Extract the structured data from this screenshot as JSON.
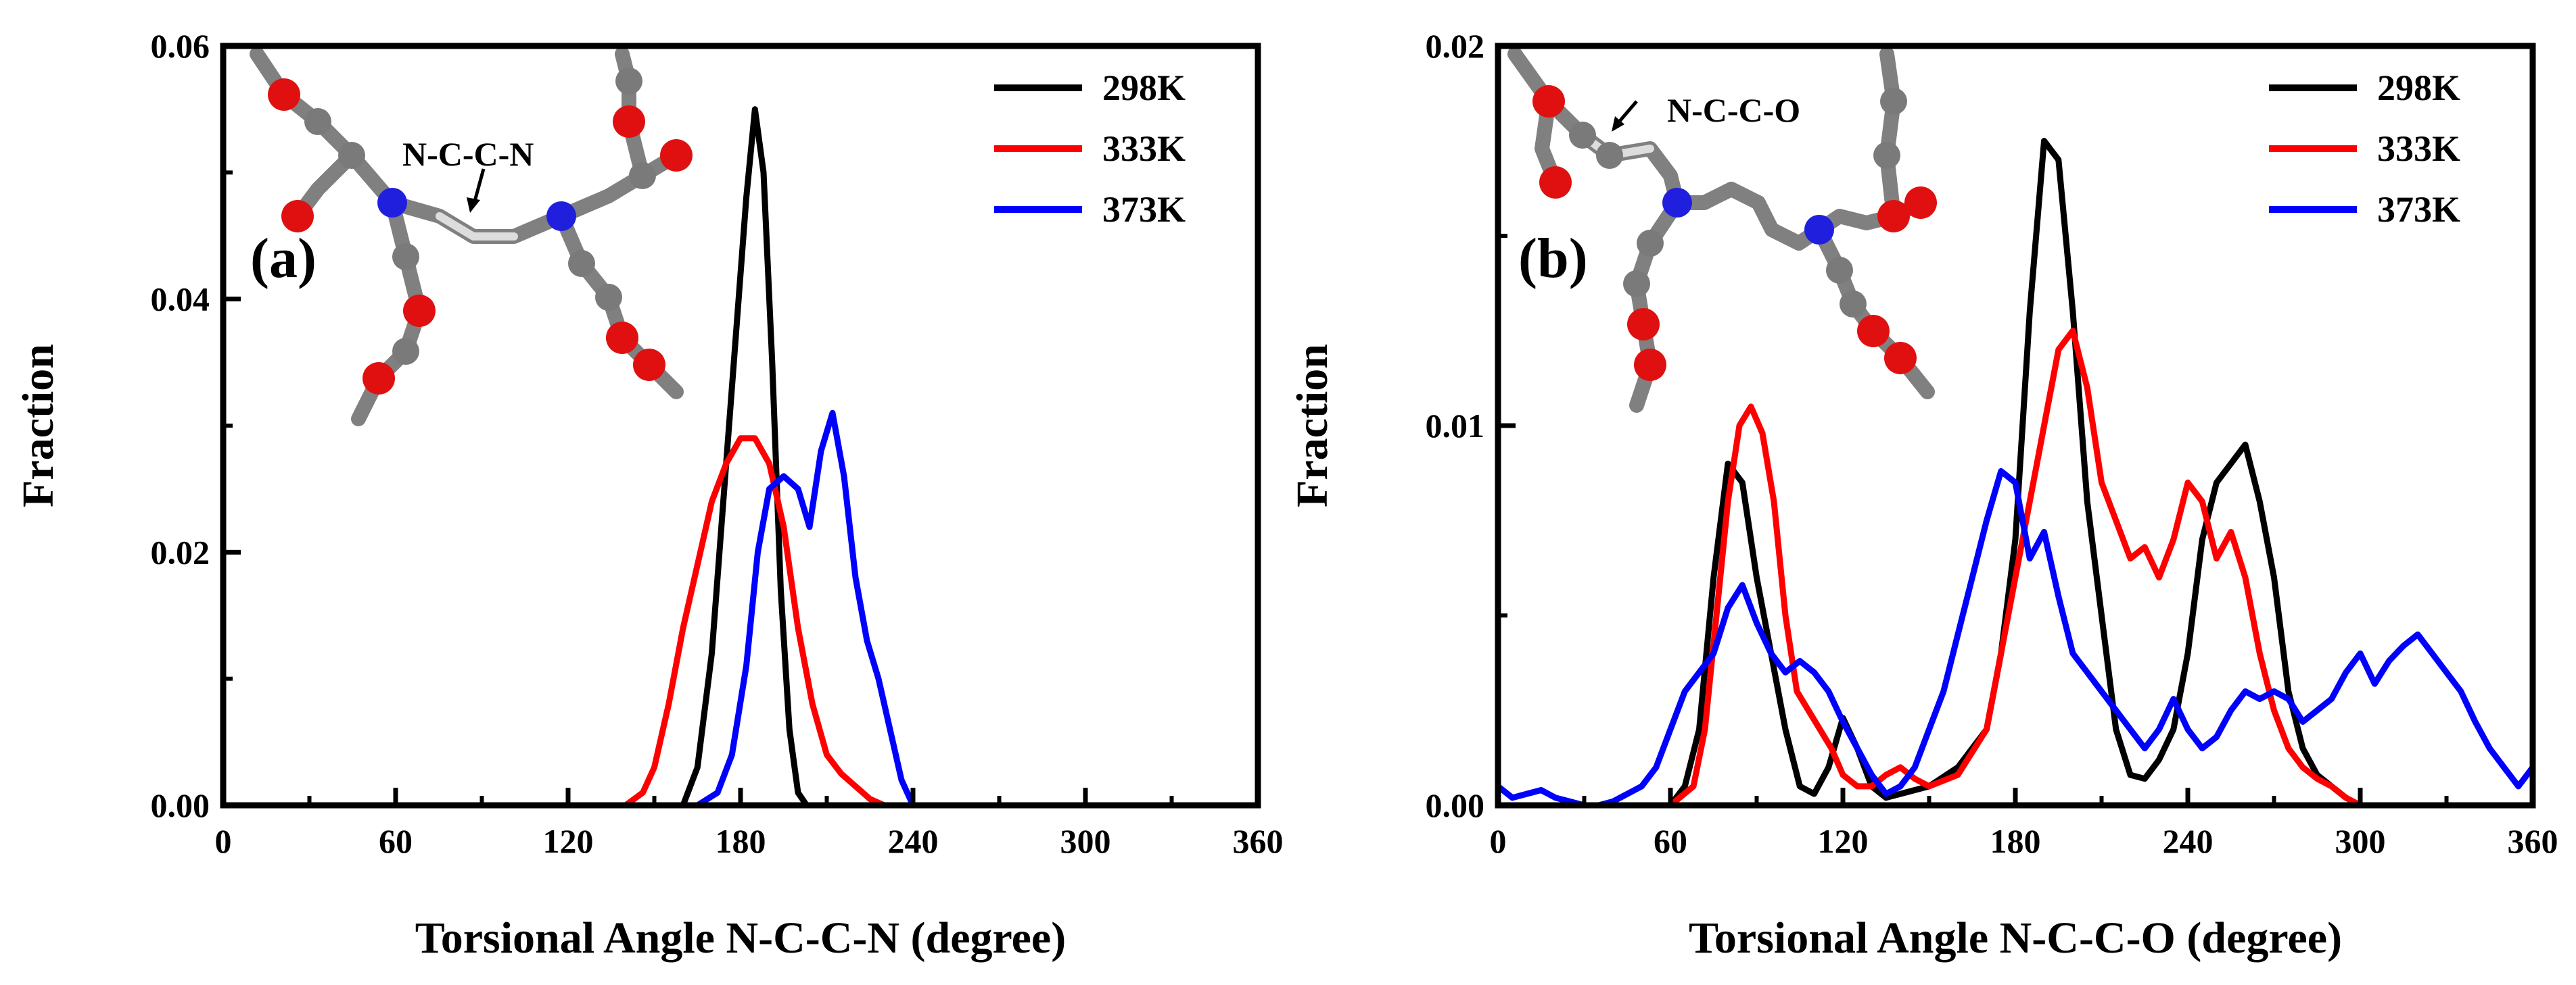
{
  "chart_data": [
    {
      "type": "line",
      "panel_label": "(a)",
      "xlabel": "Torsional Angle N-C-C-N (degree)",
      "ylabel": "Fraction",
      "xlim": [
        0,
        360
      ],
      "ylim": [
        0,
        0.06
      ],
      "xticks": [
        "0",
        "60",
        "120",
        "180",
        "240",
        "300",
        "360"
      ],
      "yticks": [
        "0.00",
        "0.02",
        "0.04",
        "0.06"
      ],
      "legend_position": "top-right",
      "inset_label": "N-C-C-N",
      "series": [
        {
          "name": "298K",
          "color": "#000000",
          "x": [
            0,
            160,
            165,
            170,
            174,
            178,
            182,
            185,
            188,
            191,
            194,
            197,
            200,
            203,
            360
          ],
          "values": [
            0,
            0,
            0.003,
            0.012,
            0.024,
            0.036,
            0.048,
            0.055,
            0.05,
            0.035,
            0.017,
            0.006,
            0.001,
            0,
            0
          ]
        },
        {
          "name": "333K",
          "color": "#ff0000",
          "x": [
            0,
            140,
            146,
            150,
            155,
            160,
            165,
            170,
            175,
            180,
            185,
            190,
            195,
            200,
            205,
            210,
            215,
            220,
            225,
            230,
            360
          ],
          "values": [
            0,
            0,
            0.001,
            0.003,
            0.008,
            0.014,
            0.019,
            0.024,
            0.027,
            0.029,
            0.029,
            0.027,
            0.022,
            0.014,
            0.008,
            0.004,
            0.0025,
            0.0015,
            0.0005,
            0,
            0
          ]
        },
        {
          "name": "373K",
          "color": "#0000ff",
          "x": [
            0,
            165,
            172,
            177,
            182,
            186,
            190,
            195,
            200,
            204,
            208,
            212,
            216,
            220,
            224,
            228,
            232,
            236,
            240,
            360
          ],
          "values": [
            0,
            0,
            0.001,
            0.004,
            0.011,
            0.02,
            0.025,
            0.026,
            0.025,
            0.022,
            0.028,
            0.031,
            0.026,
            0.018,
            0.013,
            0.01,
            0.006,
            0.002,
            0,
            0
          ]
        }
      ]
    },
    {
      "type": "line",
      "panel_label": "(b)",
      "xlabel": "Torsional Angle N-C-C-O (degree)",
      "ylabel": "Fraction",
      "xlim": [
        0,
        360
      ],
      "ylim": [
        0,
        0.02
      ],
      "xticks": [
        "0",
        "60",
        "120",
        "180",
        "240",
        "300",
        "360"
      ],
      "yticks": [
        "0.00",
        "0.01",
        "0.02"
      ],
      "legend_position": "top-right",
      "inset_label": "N-C-C-O",
      "series": [
        {
          "name": "298K",
          "color": "#000000",
          "x": [
            0,
            60,
            65,
            70,
            75,
            80,
            85,
            90,
            95,
            100,
            105,
            110,
            115,
            120,
            125,
            130,
            135,
            140,
            150,
            160,
            170,
            175,
            180,
            185,
            190,
            195,
            200,
            205,
            210,
            215,
            220,
            225,
            230,
            235,
            240,
            245,
            250,
            255,
            260,
            265,
            270,
            275,
            280,
            285,
            290,
            295,
            300,
            360
          ],
          "values": [
            0,
            0,
            0.0005,
            0.002,
            0.006,
            0.009,
            0.0085,
            0.006,
            0.004,
            0.002,
            0.0005,
            0.0003,
            0.001,
            0.0023,
            0.0015,
            0.0005,
            0.0002,
            0.0003,
            0.0005,
            0.001,
            0.002,
            0.004,
            0.007,
            0.013,
            0.0175,
            0.017,
            0.013,
            0.008,
            0.005,
            0.002,
            0.0008,
            0.0007,
            0.0012,
            0.002,
            0.004,
            0.007,
            0.0085,
            0.009,
            0.0095,
            0.008,
            0.006,
            0.003,
            0.0015,
            0.0008,
            0.0005,
            0.0002,
            0,
            0
          ]
        },
        {
          "name": "333K",
          "color": "#ff0000",
          "x": [
            0,
            60,
            68,
            72,
            76,
            80,
            84,
            88,
            92,
            96,
            100,
            104,
            108,
            112,
            116,
            120,
            125,
            130,
            135,
            140,
            145,
            150,
            160,
            170,
            175,
            180,
            185,
            190,
            195,
            200,
            205,
            210,
            215,
            220,
            225,
            230,
            235,
            240,
            245,
            250,
            255,
            260,
            265,
            270,
            275,
            280,
            285,
            290,
            295,
            300,
            360
          ],
          "values": [
            0,
            0,
            0.0005,
            0.002,
            0.005,
            0.008,
            0.01,
            0.0105,
            0.0098,
            0.008,
            0.005,
            0.003,
            0.0025,
            0.002,
            0.0015,
            0.0008,
            0.0005,
            0.0005,
            0.0008,
            0.001,
            0.0007,
            0.0005,
            0.0008,
            0.002,
            0.004,
            0.006,
            0.008,
            0.01,
            0.012,
            0.0125,
            0.011,
            0.0085,
            0.0075,
            0.0065,
            0.0068,
            0.006,
            0.007,
            0.0085,
            0.008,
            0.0065,
            0.0072,
            0.006,
            0.004,
            0.0025,
            0.0015,
            0.001,
            0.0007,
            0.0005,
            0.0002,
            0,
            0
          ]
        },
        {
          "name": "373K",
          "color": "#0000ff",
          "x": [
            0,
            5,
            10,
            15,
            20,
            25,
            30,
            35,
            40,
            45,
            50,
            55,
            60,
            65,
            70,
            75,
            80,
            85,
            90,
            95,
            100,
            105,
            110,
            115,
            120,
            125,
            130,
            135,
            140,
            145,
            150,
            155,
            160,
            165,
            170,
            175,
            180,
            185,
            190,
            195,
            200,
            205,
            210,
            215,
            220,
            225,
            230,
            235,
            240,
            245,
            250,
            255,
            260,
            265,
            270,
            275,
            280,
            285,
            290,
            295,
            300,
            305,
            310,
            315,
            320,
            325,
            330,
            335,
            340,
            345,
            350,
            355,
            360
          ],
          "values": [
            0.0005,
            0.0002,
            0.0003,
            0.0004,
            0.0002,
            0.0001,
            0,
            0,
            0.0001,
            0.0003,
            0.0005,
            0.001,
            0.002,
            0.003,
            0.0035,
            0.004,
            0.0052,
            0.0058,
            0.0048,
            0.004,
            0.0035,
            0.0038,
            0.0035,
            0.003,
            0.0022,
            0.0015,
            0.0008,
            0.0003,
            0.0005,
            0.001,
            0.002,
            0.003,
            0.0045,
            0.006,
            0.0075,
            0.0088,
            0.0085,
            0.0065,
            0.0072,
            0.0055,
            0.004,
            0.0035,
            0.003,
            0.0025,
            0.002,
            0.0015,
            0.002,
            0.0028,
            0.002,
            0.0015,
            0.0018,
            0.0025,
            0.003,
            0.0028,
            0.003,
            0.0028,
            0.0022,
            0.0025,
            0.0028,
            0.0035,
            0.004,
            0.0032,
            0.0038,
            0.0042,
            0.0045,
            0.004,
            0.0035,
            0.003,
            0.0022,
            0.0015,
            0.001,
            0.0005,
            0.001
          ]
        }
      ]
    }
  ]
}
